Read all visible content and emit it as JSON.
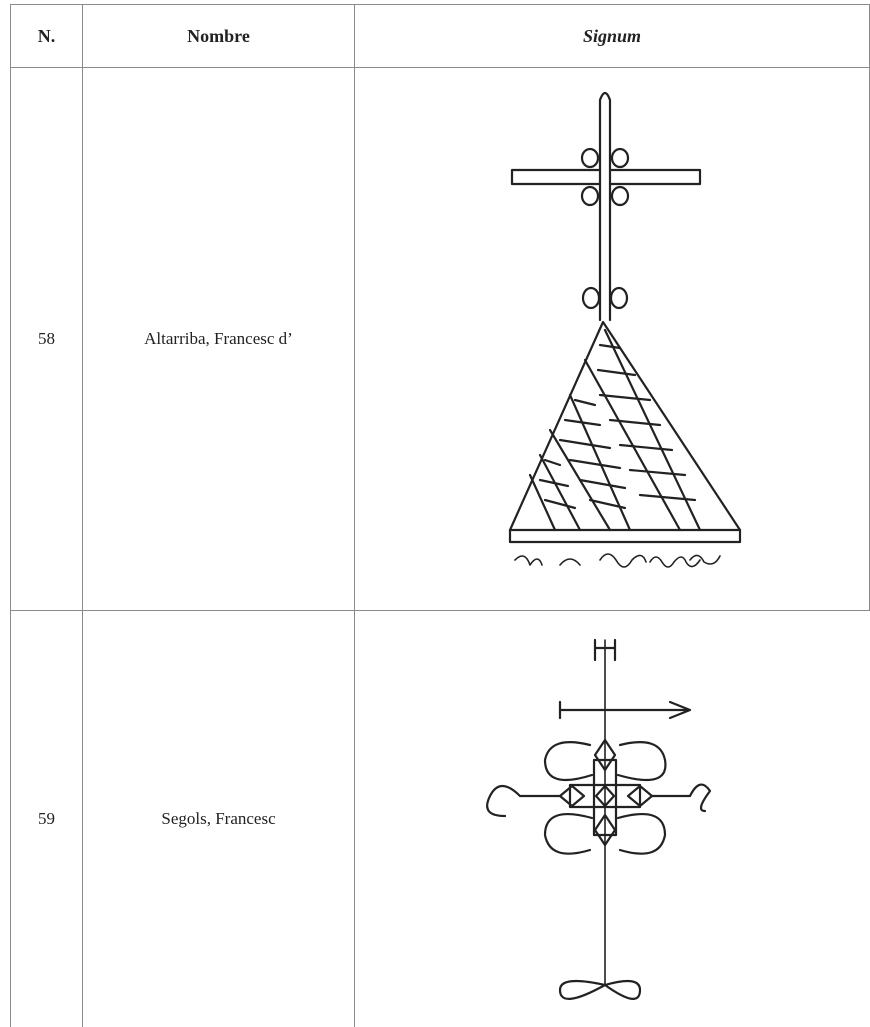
{
  "table": {
    "header": [
      "N.",
      "Nombre",
      "Signum"
    ],
    "rows": [
      [
        "58",
        "Altarriba, Francesc d’"
      ],
      [
        "59",
        "Segols, Francesc"
      ]
    ]
  }
}
